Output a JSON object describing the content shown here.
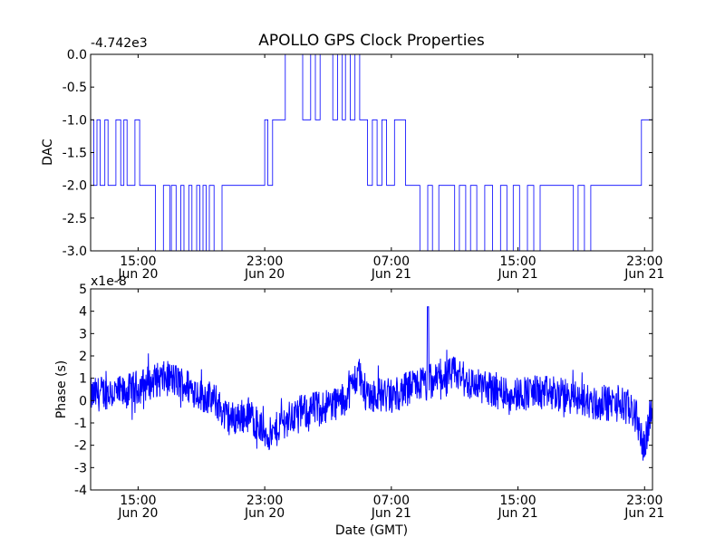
{
  "figure": {
    "title": "APOLLO GPS Clock Properties",
    "xlabel": "Date (GMT)"
  },
  "chart_data": [
    {
      "type": "line",
      "ylabel": "DAC",
      "offset_label": "-4.742e3",
      "ylim": [
        -3.0,
        0.0
      ],
      "ytick_values": [
        0.0,
        -0.5,
        -1.0,
        -1.5,
        -2.0,
        -2.5,
        -3.0
      ],
      "ytick_labels": [
        "0.0",
        "-0.5",
        "-1.0",
        "-1.5",
        "-2.0",
        "-2.5",
        "-3.0"
      ],
      "xlim": [
        "Jun 20 12:00",
        "Jun 21 23:30"
      ],
      "xtick_positions": [
        "Jun 20 15:00",
        "Jun 20 23:00",
        "Jun 21 07:00",
        "Jun 21 15:00",
        "Jun 21 23:00"
      ],
      "xtick_time_labels": [
        "15:00",
        "23:00",
        "07:00",
        "15:00",
        "23:00"
      ],
      "xtick_date_labels": [
        "Jun 20",
        "Jun 20",
        "Jun 21",
        "Jun 21",
        "Jun 21"
      ],
      "color": "#0000ff",
      "series": [
        {
          "style": "step",
          "x_hours_from_jun20_1200": [
            0.0,
            0.2,
            0.4,
            0.6,
            0.9,
            1.1,
            1.3,
            1.6,
            1.9,
            2.1,
            2.3,
            2.6,
            2.8,
            3.1,
            3.4,
            3.8,
            4.1,
            4.6,
            5.0,
            5.1,
            5.4,
            5.7,
            5.9,
            6.2,
            6.4,
            6.7,
            6.9,
            7.1,
            7.3,
            7.5,
            7.8,
            8.3,
            8.9,
            9.5,
            10.1,
            11.0,
            11.2,
            11.5,
            11.9,
            12.3,
            12.6,
            13.4,
            13.9,
            14.2,
            14.5,
            15.0,
            15.3,
            15.6,
            15.9,
            16.1,
            16.4,
            16.7,
            17.0,
            17.2,
            17.5,
            17.8,
            18.1,
            18.4,
            18.7,
            19.2,
            19.6,
            19.9,
            20.3,
            20.8,
            21.3,
            21.6,
            22.0,
            22.4,
            23.0,
            23.3,
            23.7,
            24.0,
            24.4,
            24.9,
            25.4,
            25.9,
            26.3,
            26.7,
            27.1,
            27.6,
            28.0,
            28.4,
            29.0,
            29.6,
            30.2,
            30.5,
            30.8,
            31.2,
            31.6,
            32.0,
            32.4,
            32.8,
            33.2,
            33.6,
            34.0,
            34.4,
            34.8,
            35.0,
            35.3
          ],
          "y": [
            -1.0,
            -2.0,
            -1.0,
            -2.0,
            -1.0,
            -2.0,
            -2.0,
            -1.0,
            -2.0,
            -1.0,
            -2.0,
            -2.0,
            -1.0,
            -2.0,
            -2.0,
            -2.0,
            -3.0,
            -2.0,
            -3.0,
            -2.0,
            -3.0,
            -2.0,
            -3.0,
            -2.0,
            -3.0,
            -2.0,
            -3.0,
            -2.0,
            -3.0,
            -2.0,
            -3.0,
            -2.0,
            -2.0,
            -2.0,
            -2.0,
            -1.0,
            -2.0,
            -1.0,
            -1.0,
            -0.0,
            -0.0,
            -1.0,
            -0.0,
            -1.0,
            -0.0,
            -0.0,
            -1.0,
            -0.0,
            -1.0,
            -0.0,
            -1.0,
            -0.0,
            -1.0,
            -1.0,
            -2.0,
            -1.0,
            -2.0,
            -1.0,
            -2.0,
            -1.0,
            -1.0,
            -2.0,
            -2.0,
            -3.0,
            -2.0,
            -3.0,
            -2.0,
            -2.0,
            -3.0,
            -2.0,
            -3.0,
            -2.0,
            -3.0,
            -2.0,
            -3.0,
            -2.0,
            -3.0,
            -2.0,
            -3.0,
            -2.0,
            -3.0,
            -2.0,
            -2.0,
            -2.0,
            -2.0,
            -3.0,
            -2.0,
            -3.0,
            -2.0,
            -2.0,
            -2.0,
            -2.0,
            -2.0,
            -2.0,
            -2.0,
            -2.0,
            -1.0,
            -1.0,
            -1.0
          ]
        }
      ]
    },
    {
      "type": "line",
      "ylabel": "Phase (s)",
      "offset_label": "x1e-8",
      "ylim": [
        -4,
        5
      ],
      "ytick_values": [
        5,
        4,
        3,
        2,
        1,
        0,
        -1,
        -2,
        -3,
        -4
      ],
      "ytick_labels": [
        "5",
        "4",
        "3",
        "2",
        "1",
        "0",
        "-1",
        "-2",
        "-3",
        "-4"
      ],
      "xlim": [
        "Jun 20 12:00",
        "Jun 21 23:30"
      ],
      "xtick_positions": [
        "Jun 20 15:00",
        "Jun 20 23:00",
        "Jun 21 07:00",
        "Jun 21 15:00",
        "Jun 21 23:00"
      ],
      "xtick_time_labels": [
        "15:00",
        "23:00",
        "07:00",
        "15:00",
        "23:00"
      ],
      "xtick_date_labels": [
        "Jun 20",
        "Jun 20",
        "Jun 21",
        "Jun 21",
        "Jun 21"
      ],
      "color": "#0000ff",
      "series": [
        {
          "style": "noisy-line",
          "x_hours_from_jun20_1200": [
            0,
            1,
            2,
            3,
            4,
            5,
            6,
            7,
            8,
            8.5,
            9,
            10,
            11,
            11.5,
            12,
            12.5,
            13,
            14,
            15,
            16,
            17,
            17.2,
            17.6,
            18,
            19,
            20,
            21,
            21.3,
            22,
            23,
            24,
            25,
            26,
            27,
            28,
            29,
            30,
            31,
            32,
            33,
            34,
            34.5,
            34.8,
            35,
            35.3,
            35.5
          ],
          "y": [
            0.2,
            0.4,
            0.3,
            0.6,
            0.9,
            1.0,
            0.7,
            0.3,
            -0.1,
            -0.7,
            -0.8,
            -0.6,
            -1.4,
            -1.6,
            -1.0,
            -0.8,
            -0.6,
            -0.4,
            -0.2,
            0.0,
            1.3,
            0.5,
            0.3,
            0.3,
            0.2,
            0.5,
            0.8,
            0.6,
            1.0,
            1.2,
            0.8,
            0.6,
            0.4,
            0.3,
            0.4,
            0.3,
            0.2,
            0.1,
            -0.2,
            -0.1,
            -0.3,
            -0.6,
            -1.8,
            -2.0,
            -0.8,
            -0.6
          ]
        }
      ]
    }
  ]
}
